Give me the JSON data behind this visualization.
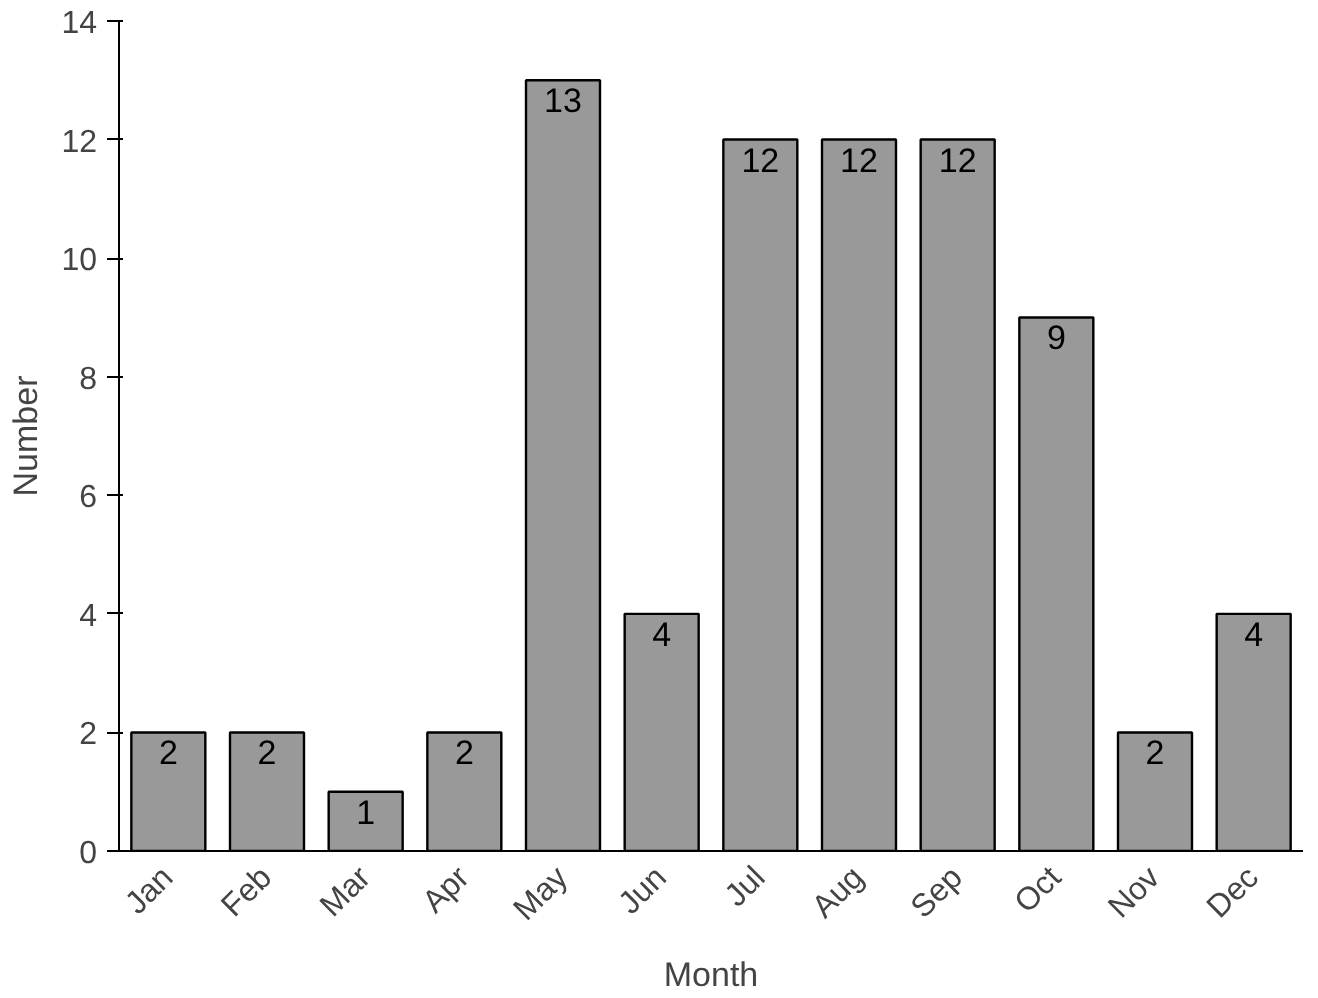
{
  "chart_data": {
    "type": "bar",
    "xlabel": "Month",
    "ylabel": "Number",
    "categories": [
      "Jan",
      "Feb",
      "Mar",
      "Apr",
      "May",
      "Jun",
      "Jul",
      "Aug",
      "Sep",
      "Oct",
      "Nov",
      "Dec"
    ],
    "values": [
      2,
      2,
      1,
      2,
      13,
      4,
      12,
      12,
      12,
      9,
      2,
      4
    ],
    "color": "#999999",
    "ylim": [
      0,
      14
    ],
    "yticks": [
      0,
      2,
      4,
      6,
      8,
      10,
      12,
      14
    ],
    "grid": false,
    "data_labels": true
  }
}
